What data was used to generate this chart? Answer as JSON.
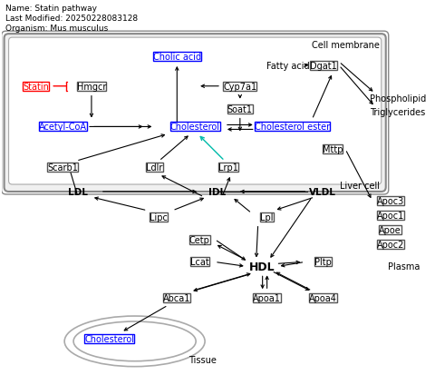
{
  "title_lines": [
    "Name: Statin pathway",
    "Last Modified: 20250228083128",
    "Organism: Mus musculus"
  ],
  "cell_membrane_label": "Cell membrane",
  "liver_cell_label": "Liver cell",
  "plasma_label": "Plasma",
  "tissue_label": "Tissue",
  "ldl_label": "LDL",
  "idl_label": "IDL",
  "vldl_label": "VLDL",
  "fatty_acid_label": "Fatty acid",
  "phospholipid_label": "Phospholipid",
  "triglycerides_label": "Triglycerides"
}
